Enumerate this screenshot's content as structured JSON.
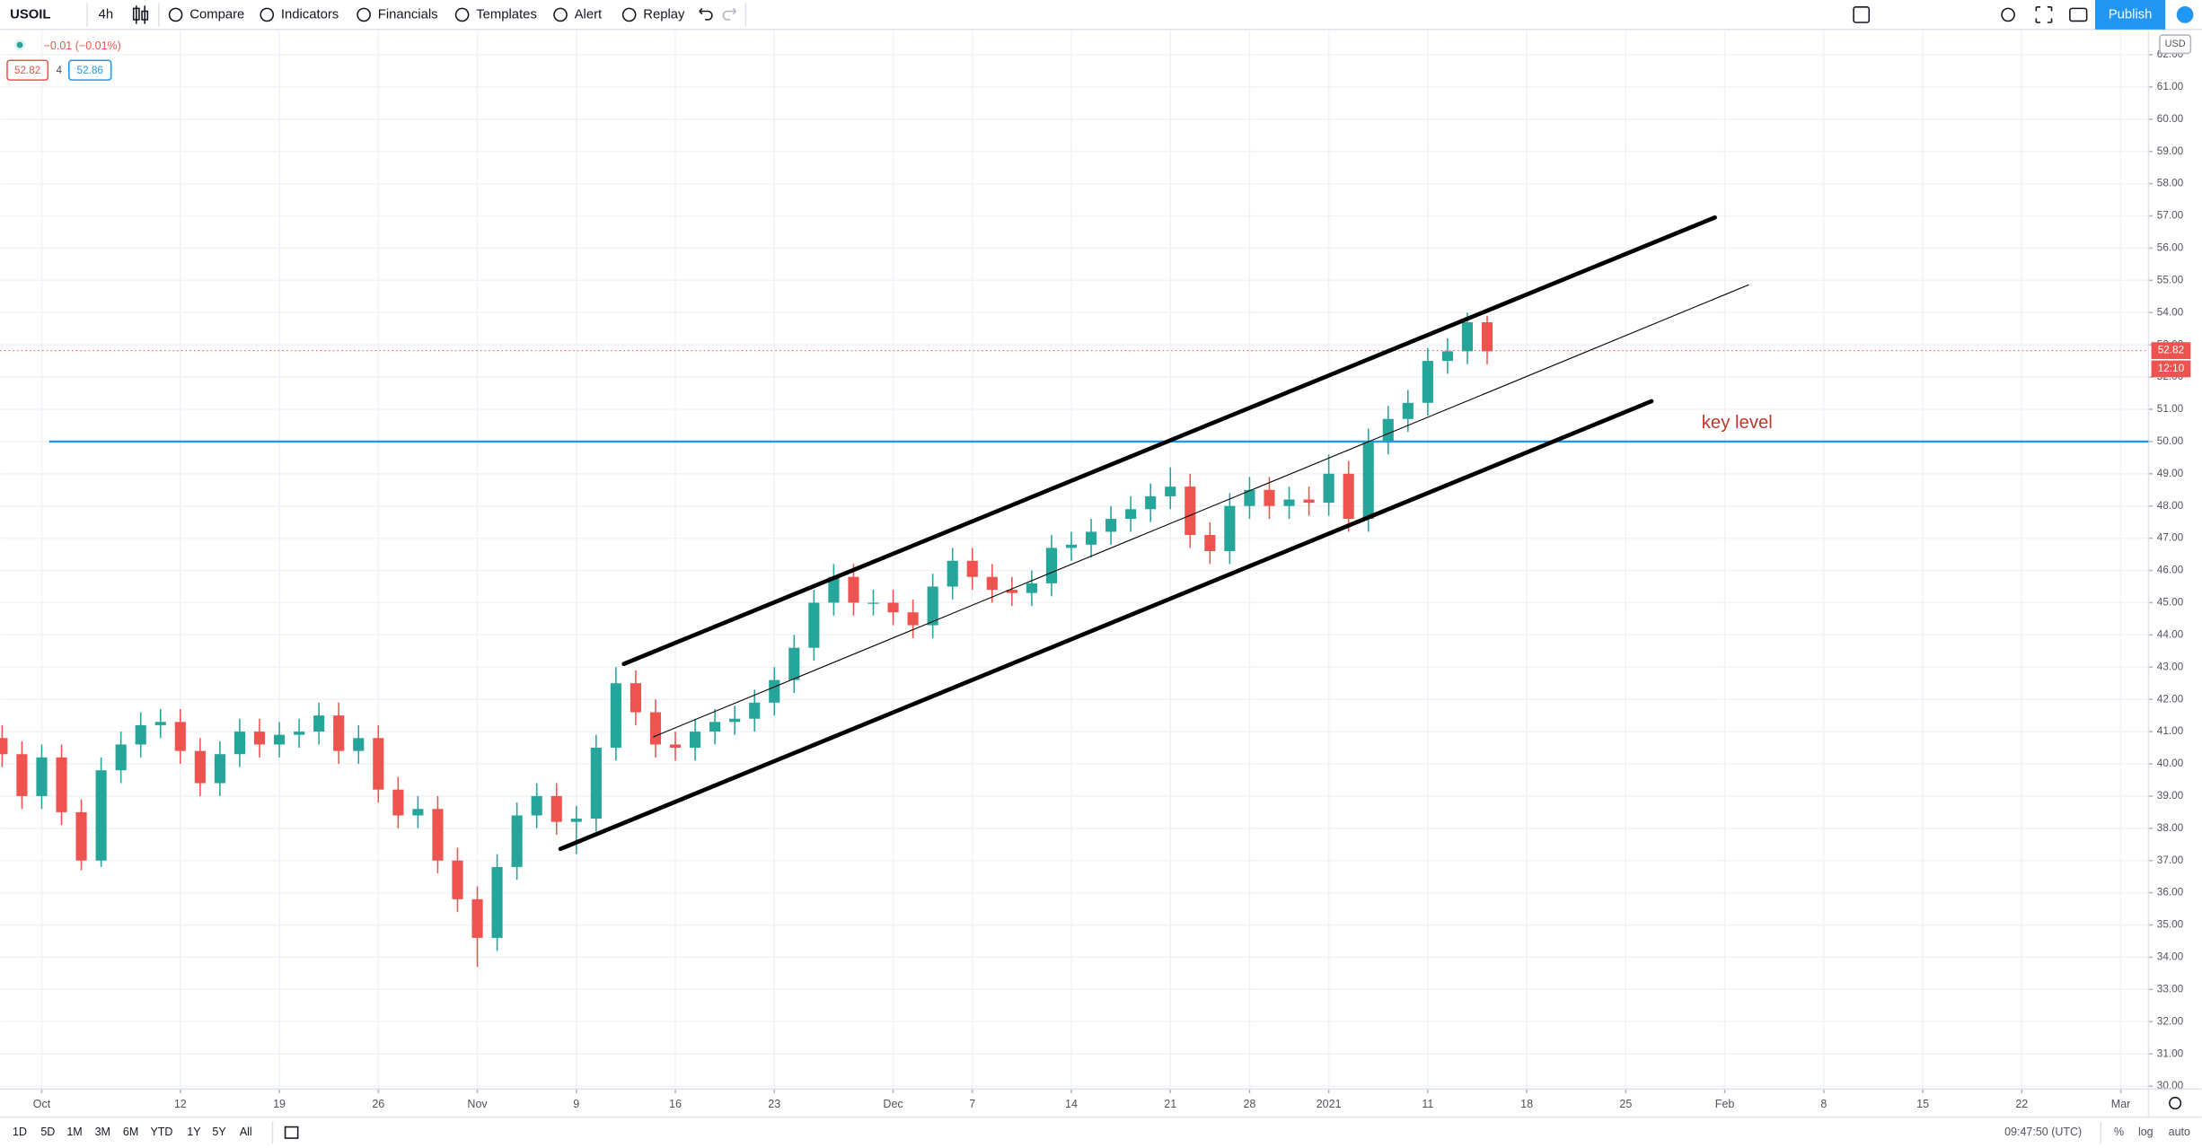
{
  "toolbar": {
    "symbol": "USOIL",
    "interval": "4h",
    "buttons": [
      "Compare",
      "Indicators",
      "Financials",
      "Templates",
      "Alert",
      "Replay"
    ],
    "publish": "Publish"
  },
  "chart_data": {
    "type": "candlestick",
    "x": [
      -2,
      -1,
      0,
      1,
      2,
      3,
      4,
      5,
      6,
      7,
      8,
      9,
      10,
      11,
      12,
      13,
      14,
      15,
      16,
      17,
      18,
      19,
      20,
      21,
      22,
      23,
      24,
      25,
      26,
      27,
      28,
      29,
      30,
      31,
      32,
      33,
      34,
      35,
      36,
      37,
      38,
      39,
      40,
      41,
      42,
      43,
      44,
      45,
      46,
      47,
      48,
      49,
      50,
      51,
      52,
      53,
      54,
      55,
      56,
      57,
      58,
      59,
      60,
      61,
      62,
      63,
      64,
      65,
      66,
      67,
      68,
      69,
      70,
      71,
      72,
      73
    ],
    "open": [
      40.8,
      40.3,
      39.0,
      40.2,
      38.5,
      37.0,
      39.8,
      40.6,
      41.2,
      41.3,
      40.4,
      39.4,
      40.3,
      41.0,
      40.6,
      40.9,
      41.0,
      41.5,
      40.4,
      40.8,
      39.2,
      38.4,
      38.6,
      37.0,
      35.8,
      34.6,
      36.8,
      38.4,
      39.0,
      38.2,
      38.3,
      40.5,
      42.5,
      41.6,
      40.6,
      40.5,
      41.0,
      41.3,
      41.4,
      41.9,
      42.6,
      43.6,
      45.0,
      45.8,
      45.0,
      45.0,
      44.7,
      44.3,
      45.5,
      46.3,
      45.8,
      45.4,
      45.3,
      45.6,
      46.7,
      46.8,
      47.2,
      47.6,
      47.9,
      48.3,
      48.6,
      47.1,
      46.6,
      48.0,
      48.5,
      48.0,
      48.2,
      48.1,
      49.0,
      47.6,
      50.0,
      50.7,
      51.2,
      52.5,
      52.8,
      53.7
    ],
    "high": [
      41.2,
      40.7,
      40.6,
      40.6,
      38.9,
      40.2,
      41.0,
      41.6,
      41.7,
      41.7,
      40.8,
      40.7,
      41.4,
      41.4,
      41.3,
      41.4,
      41.9,
      41.9,
      41.2,
      41.2,
      39.6,
      39.0,
      39.0,
      37.4,
      36.2,
      37.2,
      38.8,
      39.4,
      39.4,
      38.7,
      40.9,
      43.0,
      42.9,
      42.0,
      41.0,
      41.4,
      41.7,
      41.8,
      42.3,
      43.0,
      44.0,
      45.4,
      46.2,
      46.2,
      45.4,
      45.4,
      45.1,
      45.9,
      46.7,
      46.7,
      46.2,
      45.8,
      46.0,
      47.1,
      47.2,
      47.6,
      48.0,
      48.3,
      48.7,
      49.2,
      49.0,
      47.5,
      48.4,
      48.9,
      48.9,
      48.6,
      48.6,
      49.6,
      49.4,
      50.4,
      51.1,
      51.6,
      52.9,
      53.2,
      54.0,
      53.9
    ],
    "low": [
      39.9,
      38.6,
      38.6,
      38.1,
      36.7,
      36.8,
      39.4,
      40.2,
      40.8,
      40.0,
      39.0,
      39.0,
      39.9,
      40.2,
      40.2,
      40.5,
      40.6,
      40.0,
      40.0,
      38.8,
      38.0,
      38.0,
      36.6,
      35.4,
      33.7,
      34.2,
      36.4,
      38.0,
      37.8,
      37.2,
      37.9,
      40.1,
      41.2,
      40.2,
      40.1,
      40.1,
      40.6,
      40.9,
      41.0,
      41.5,
      42.2,
      43.2,
      44.6,
      44.6,
      44.6,
      44.3,
      43.9,
      43.9,
      45.1,
      45.4,
      45.0,
      44.9,
      44.9,
      45.2,
      46.3,
      46.4,
      46.8,
      47.2,
      47.5,
      47.9,
      46.7,
      46.2,
      46.2,
      47.6,
      47.6,
      47.6,
      47.7,
      47.7,
      47.2,
      47.2,
      49.6,
      50.3,
      50.8,
      52.1,
      52.4,
      52.4
    ],
    "close": [
      40.3,
      39.0,
      40.2,
      38.5,
      37.0,
      39.8,
      40.6,
      41.2,
      41.3,
      40.4,
      39.4,
      40.3,
      41.0,
      40.6,
      40.9,
      41.0,
      41.5,
      40.4,
      40.8,
      39.2,
      38.4,
      38.6,
      37.0,
      35.8,
      34.6,
      36.8,
      38.4,
      39.0,
      38.2,
      38.3,
      40.5,
      42.5,
      41.6,
      40.6,
      40.5,
      41.0,
      41.3,
      41.4,
      41.9,
      42.6,
      43.6,
      45.0,
      45.8,
      45.0,
      45.0,
      44.7,
      44.3,
      45.5,
      46.3,
      45.8,
      45.4,
      45.3,
      45.6,
      46.7,
      46.8,
      47.2,
      47.6,
      47.9,
      48.3,
      48.6,
      47.1,
      46.6,
      48.0,
      48.5,
      48.0,
      48.2,
      48.1,
      49.0,
      47.6,
      50.0,
      50.7,
      51.2,
      52.5,
      52.8,
      53.7,
      52.8
    ],
    "up_color": "#26a69a",
    "down_color": "#ef5350",
    "xlim": [
      -2.1,
      106.4
    ],
    "xticks": [
      {
        "value": 0,
        "label": "Oct"
      },
      {
        "value": 7,
        "label": "12"
      },
      {
        "value": 12,
        "label": "19"
      },
      {
        "value": 17,
        "label": "26"
      },
      {
        "value": 22,
        "label": "Nov"
      },
      {
        "value": 27,
        "label": "9"
      },
      {
        "value": 32,
        "label": "16"
      },
      {
        "value": 37,
        "label": "23"
      },
      {
        "value": 43,
        "label": "Dec"
      },
      {
        "value": 47,
        "label": "7"
      },
      {
        "value": 52,
        "label": "14"
      },
      {
        "value": 57,
        "label": "21"
      },
      {
        "value": 61,
        "label": "28"
      },
      {
        "value": 65,
        "label": "2021"
      },
      {
        "value": 70,
        "label": "11"
      },
      {
        "value": 75,
        "label": "18"
      },
      {
        "value": 80,
        "label": "25"
      },
      {
        "value": 85,
        "label": "Feb"
      },
      {
        "value": 90,
        "label": "8"
      },
      {
        "value": 95,
        "label": "15"
      },
      {
        "value": 100,
        "label": "22"
      },
      {
        "value": 105,
        "label": "Mar"
      }
    ],
    "ylim": [
      29.91,
      62.74
    ],
    "yticks": [
      {
        "value": 30,
        "label": "30.00"
      },
      {
        "value": 31,
        "label": "31.00"
      },
      {
        "value": 32,
        "label": "32.00"
      },
      {
        "value": 33,
        "label": "33.00"
      },
      {
        "value": 34,
        "label": "34.00"
      },
      {
        "value": 35,
        "label": "35.00"
      },
      {
        "value": 36,
        "label": "36.00"
      },
      {
        "value": 37,
        "label": "37.00"
      },
      {
        "value": 38,
        "label": "38.00"
      },
      {
        "value": 39,
        "label": "39.00"
      },
      {
        "value": 40,
        "label": "40.00"
      },
      {
        "value": 41,
        "label": "41.00"
      },
      {
        "value": 42,
        "label": "42.00"
      },
      {
        "value": 43,
        "label": "43.00"
      },
      {
        "value": 44,
        "label": "44.00"
      },
      {
        "value": 45,
        "label": "45.00"
      },
      {
        "value": 46,
        "label": "46.00"
      },
      {
        "value": 47,
        "label": "47.00"
      },
      {
        "value": 48,
        "label": "48.00"
      },
      {
        "value": 49,
        "label": "49.00"
      },
      {
        "value": 50,
        "label": "50.00"
      },
      {
        "value": 51,
        "label": "51.00"
      },
      {
        "value": 52,
        "label": "52.00"
      },
      {
        "value": 53,
        "label": "53.00"
      },
      {
        "value": 54,
        "label": "54.00"
      },
      {
        "value": 55,
        "label": "55.00"
      },
      {
        "value": 56,
        "label": "56.00"
      },
      {
        "value": 57,
        "label": "57.00"
      },
      {
        "value": 58,
        "label": "58.00"
      },
      {
        "value": 59,
        "label": "59.00"
      },
      {
        "value": 60,
        "label": "60.00"
      },
      {
        "value": 61,
        "label": "61.00"
      },
      {
        "value": 62,
        "label": "62.00"
      }
    ],
    "y_axis_label": "USD",
    "grid": true,
    "legend": {
      "change": "−0.01 (−0.01%)",
      "bid": 52.82,
      "spread": 4,
      "ask": 52.86
    },
    "last_price": 52.82,
    "countdown": "12:10",
    "drawings": [
      {
        "x": [
          29.4,
          84.5
        ],
        "y": [
          43.1,
          56.95
        ],
        "color": "#000000",
        "width": 3
      },
      {
        "x": [
          26.2,
          81.3
        ],
        "y": [
          37.36,
          51.25
        ],
        "color": "#000000",
        "width": 3
      },
      {
        "x": [
          30.9,
          86.2
        ],
        "y": [
          40.84,
          54.86
        ],
        "color": "#000000",
        "width": 0.7
      }
    ],
    "key_level": {
      "value": 50,
      "x_start": 0.38,
      "label": "key level",
      "color": "#2196f3",
      "label_color": "#c0392b"
    }
  },
  "range_buttons": [
    "1D",
    "5D",
    "1M",
    "3M",
    "6M",
    "YTD",
    "1Y",
    "5Y",
    "All"
  ],
  "footer": {
    "time": "09:47:50 (UTC)",
    "percent": "%",
    "log": "log",
    "auto": "auto"
  }
}
